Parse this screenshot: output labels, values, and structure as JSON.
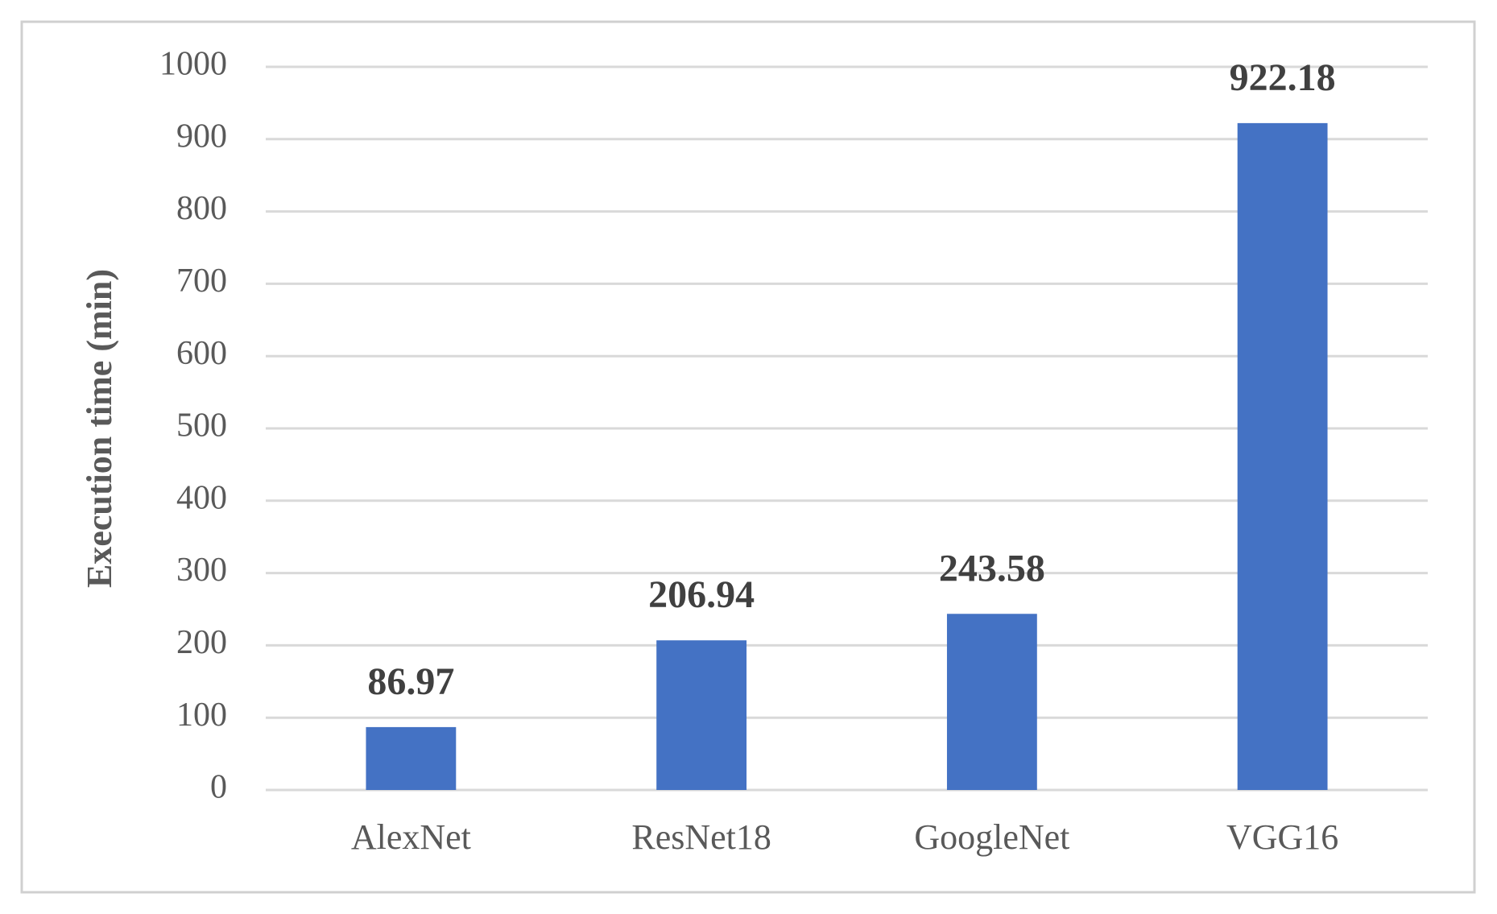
{
  "chart_data": {
    "type": "bar",
    "y_axis_label": "Execution time (min)",
    "categories": [
      "AlexNet",
      "ResNet18",
      "GoogleNet",
      "VGG16"
    ],
    "values": [
      86.97,
      206.94,
      243.58,
      922.18
    ],
    "color": "#4472c4",
    "ylim": [
      0,
      1000
    ],
    "yticks": [
      0,
      100,
      200,
      300,
      400,
      500,
      600,
      700,
      800,
      900,
      1000
    ],
    "grid": true
  }
}
